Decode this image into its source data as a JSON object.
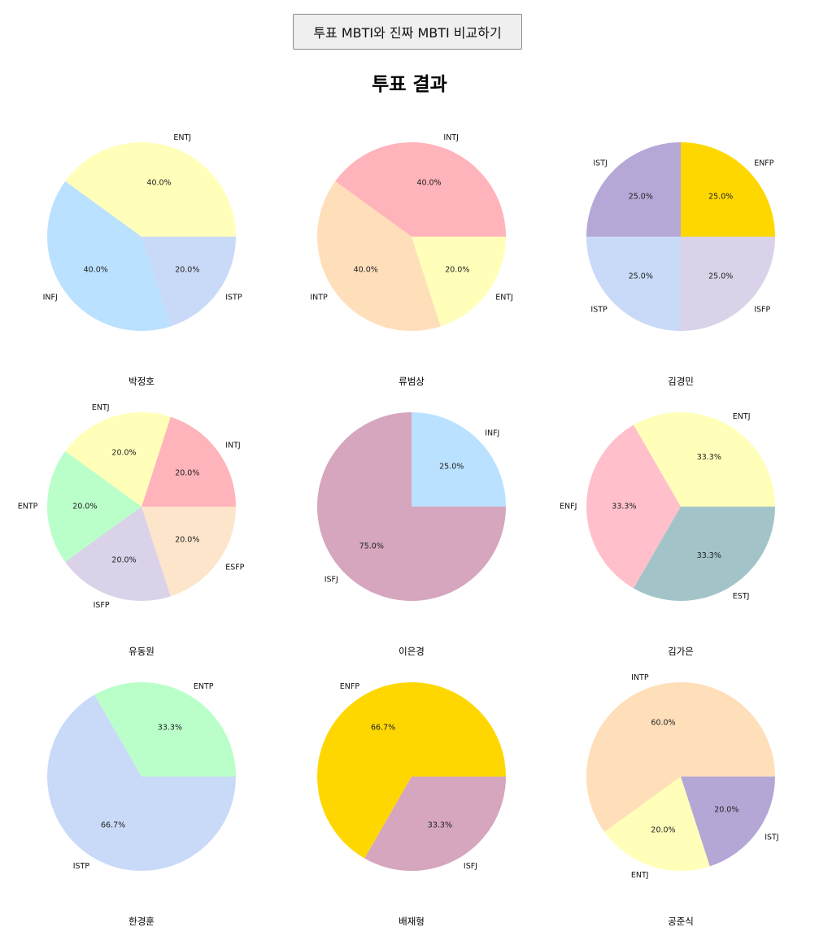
{
  "header": {
    "compare_button_label": "투표 MBTI와 진짜 MBTI 비교하기",
    "title": "투표 결과"
  },
  "chart_data": [
    {
      "type": "pie",
      "title": "박정호",
      "slices": [
        {
          "label": "ENTJ",
          "value": 40.0,
          "color": "#ffffba"
        },
        {
          "label": "INFJ",
          "value": 40.0,
          "color": "#bae1ff"
        },
        {
          "label": "ISTP",
          "value": 20.0,
          "color": "#c9daf8"
        }
      ],
      "pct_labels": [
        "40.0%",
        "40.0%",
        "20.0%"
      ]
    },
    {
      "type": "pie",
      "title": "류범상",
      "slices": [
        {
          "label": "INTJ",
          "value": 40.0,
          "color": "#ffb3ba"
        },
        {
          "label": "INTP",
          "value": 40.0,
          "color": "#ffdfba"
        },
        {
          "label": "ENTJ",
          "value": 20.0,
          "color": "#ffffba"
        }
      ],
      "pct_labels": [
        "40.0%",
        "40.0%",
        "20.0%"
      ]
    },
    {
      "type": "pie",
      "title": "김경민",
      "slices": [
        {
          "label": "ENFP",
          "value": 25.0,
          "color": "#ffd700"
        },
        {
          "label": "ISTJ",
          "value": 25.0,
          "color": "#b5a8d6"
        },
        {
          "label": "ISTP",
          "value": 25.0,
          "color": "#c9daf8"
        },
        {
          "label": "ISFP",
          "value": 25.0,
          "color": "#d9d2e9"
        }
      ],
      "pct_labels": [
        "25.0%",
        "25.0%",
        "25.0%",
        "25.0%"
      ]
    },
    {
      "type": "pie",
      "title": "유동원",
      "slices": [
        {
          "label": "INTJ",
          "value": 20.0,
          "color": "#ffb3ba"
        },
        {
          "label": "ENTJ",
          "value": 20.0,
          "color": "#ffffba"
        },
        {
          "label": "ENTP",
          "value": 20.0,
          "color": "#baffc9"
        },
        {
          "label": "ISFP",
          "value": 20.0,
          "color": "#d9d2e9"
        },
        {
          "label": "ESFP",
          "value": 20.0,
          "color": "#fde5cb"
        }
      ],
      "pct_labels": [
        "20.0%",
        "20.0%",
        "20.0%",
        "20.0%",
        "20.0%"
      ]
    },
    {
      "type": "pie",
      "title": "이은경",
      "slices": [
        {
          "label": "INFJ",
          "value": 25.0,
          "color": "#bae1ff"
        },
        {
          "label": "ISFJ",
          "value": 75.0,
          "color": "#d5a6bd"
        }
      ],
      "pct_labels": [
        "25.0%",
        "75.0%"
      ]
    },
    {
      "type": "pie",
      "title": "김가은",
      "slices": [
        {
          "label": "ENTJ",
          "value": 33.3,
          "color": "#ffffba"
        },
        {
          "label": "ENFJ",
          "value": 33.3,
          "color": "#ffc0cb"
        },
        {
          "label": "ESTJ",
          "value": 33.3,
          "color": "#a2c4c9"
        }
      ],
      "pct_labels": [
        "33.3%",
        "33.3%",
        "33.3%"
      ]
    },
    {
      "type": "pie",
      "title": "한경훈",
      "slices": [
        {
          "label": "ENTP",
          "value": 33.3,
          "color": "#baffc9"
        },
        {
          "label": "ISTP",
          "value": 66.7,
          "color": "#c9daf8"
        }
      ],
      "pct_labels": [
        "33.3%",
        "66.7%"
      ]
    },
    {
      "type": "pie",
      "title": "배재형",
      "slices": [
        {
          "label": "ENFP",
          "value": 66.7,
          "color": "#ffd700"
        },
        {
          "label": "ISFJ",
          "value": 33.3,
          "color": "#d5a6bd"
        }
      ],
      "pct_labels": [
        "66.7%",
        "33.3%"
      ]
    },
    {
      "type": "pie",
      "title": "공준식",
      "slices": [
        {
          "label": "INTP",
          "value": 60.0,
          "color": "#ffdfba"
        },
        {
          "label": "ENTJ",
          "value": 20.0,
          "color": "#ffffba"
        },
        {
          "label": "ISTJ",
          "value": 20.0,
          "color": "#b4a7d6"
        }
      ],
      "pct_labels": [
        "60.0%",
        "20.0%",
        "20.0%"
      ]
    }
  ]
}
